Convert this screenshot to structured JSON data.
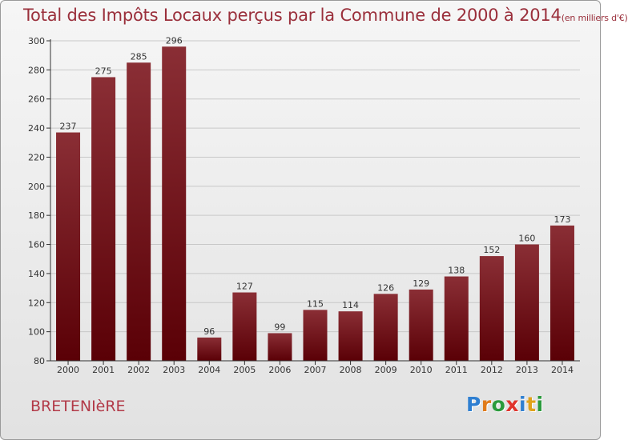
{
  "title": "Total des Impôts Locaux perçus par la Commune de 2000 à 2014",
  "title_unit": "(en milliers d'€)",
  "commune": "BRETENIèRE",
  "logo": {
    "letters": [
      "P",
      "r",
      "o",
      "x",
      "i",
      "t",
      "i"
    ],
    "colors": [
      "#2f7fd1",
      "#e07b1a",
      "#2a9a3c",
      "#e0342c",
      "#2f7fd1",
      "#e0a21a",
      "#2a9a3c"
    ]
  },
  "colors": {
    "bar_top": "#8a2e35",
    "bar_bottom": "#5a0006",
    "axis": "#333333",
    "grid": "#c8c8c8"
  },
  "chart_data": {
    "type": "bar",
    "title": "Total des Impôts Locaux perçus par la Commune de 2000 à 2014 (en milliers d'€)",
    "xlabel": "",
    "ylabel": "",
    "categories": [
      "2000",
      "2001",
      "2002",
      "2003",
      "2004",
      "2005",
      "2006",
      "2007",
      "2008",
      "2009",
      "2010",
      "2011",
      "2012",
      "2013",
      "2014"
    ],
    "values": [
      237,
      275,
      285,
      296,
      96,
      127,
      99,
      115,
      114,
      126,
      129,
      138,
      152,
      160,
      173
    ],
    "ylim": [
      80,
      300
    ],
    "yticks": [
      80,
      100,
      120,
      140,
      160,
      180,
      200,
      220,
      240,
      260,
      280,
      300
    ],
    "grid": true
  }
}
